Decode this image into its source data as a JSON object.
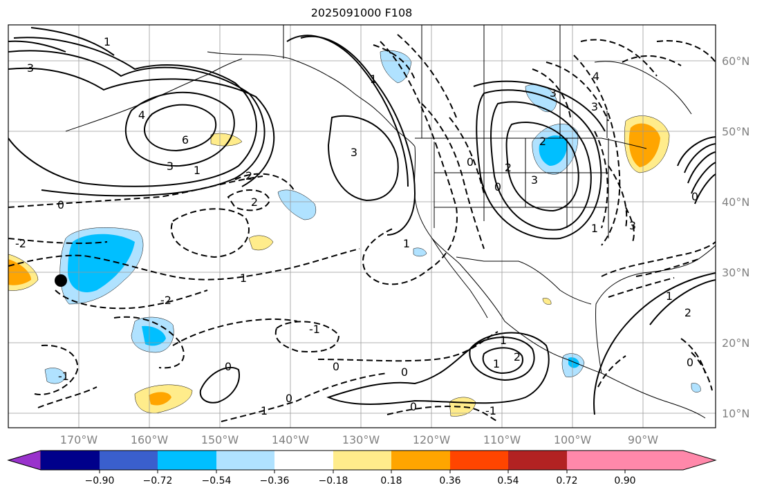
{
  "title": "2025091000 F108",
  "lat_labels": [
    "60°N",
    "50°N",
    "40°N",
    "30°N",
    "20°N",
    "10°N"
  ],
  "lon_labels": [
    "170°W",
    "160°W",
    "150°W",
    "140°W",
    "130°W",
    "120°W",
    "110°W",
    "100°W",
    "90°W"
  ],
  "colorbar": {
    "tick_labels": [
      "−0.90",
      "−0.72",
      "−0.54",
      "−0.36",
      "−0.18",
      "0.18",
      "0.36",
      "0.54",
      "0.72",
      "0.90"
    ],
    "colors": [
      "#9932cc",
      "#00008b",
      "#3a5fcd",
      "#00bfff",
      "#b0e2ff",
      "#ffffff",
      "#ffec8b",
      "#ffa500",
      "#ff4500",
      "#b22222",
      "#ff88aa"
    ]
  },
  "contour_labels": [
    "1",
    "3",
    "4",
    "6",
    "3",
    "1",
    "2",
    "2",
    "0",
    "-2",
    "1",
    "3",
    "1",
    "1",
    "2",
    "3",
    "3",
    "0",
    "2",
    "4",
    "3",
    "3",
    "0",
    "1",
    "-1",
    "-1",
    "0",
    "0",
    "1",
    "2",
    "1",
    "0",
    "0",
    "-1",
    "1",
    "2",
    "0",
    "1",
    "0",
    "-2",
    "0"
  ],
  "marker": "black-dot"
}
